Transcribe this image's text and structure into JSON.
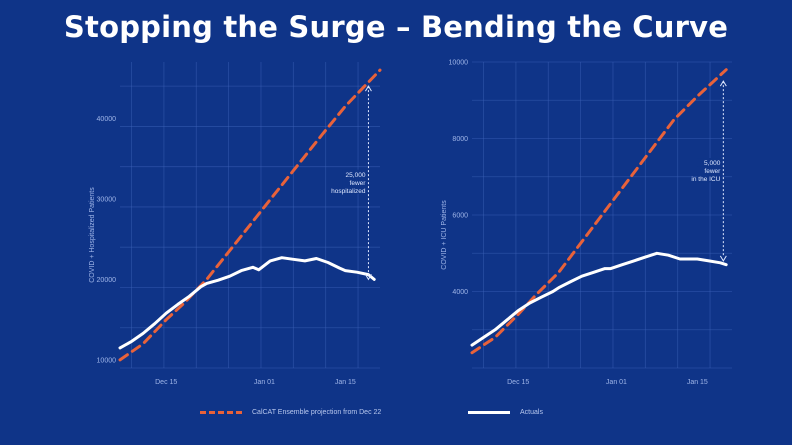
{
  "slide": {
    "title": "Stopping the Surge – Bending the Curve"
  },
  "legend": {
    "projection_label": "CalCAT Ensemble projection from Dec 22",
    "actuals_label": "Actuals"
  },
  "colors": {
    "background": "#0f3488",
    "projection": "#e8623a",
    "actuals": "#ffffff",
    "grid": "#3d62b8"
  },
  "chart_data": [
    {
      "type": "line",
      "ylabel": "COVID + Hospitalized Patients",
      "x_ticks": [
        {
          "label": "Dec 15",
          "day": 0
        },
        {
          "label": "Jan 01",
          "day": 17
        },
        {
          "label": "Jan 15",
          "day": 31
        }
      ],
      "xlim": [
        -8,
        37
      ],
      "ylim": [
        9000,
        47000
      ],
      "y_ticks": [
        10000,
        20000,
        30000,
        40000
      ],
      "grid": true,
      "series": [
        {
          "name": "CalCAT Ensemble projection from Dec 22",
          "style": "dashed",
          "x": [
            -8,
            -4,
            0,
            3,
            7,
            12,
            17,
            22,
            27,
            31,
            37
          ],
          "y": [
            10000,
            12000,
            15000,
            17000,
            20000,
            24500,
            29000,
            33500,
            38000,
            41500,
            46000
          ]
        },
        {
          "name": "Actuals",
          "style": "solid",
          "x": [
            -8,
            -6,
            -4,
            -2,
            0,
            2,
            4,
            6,
            7,
            9,
            11,
            13,
            15,
            16,
            18,
            20,
            22,
            24,
            26,
            28,
            30,
            31,
            33,
            35,
            36
          ],
          "y": [
            11500,
            12300,
            13300,
            14500,
            15800,
            16900,
            17900,
            19100,
            19500,
            19900,
            20400,
            21100,
            21500,
            21200,
            22300,
            22700,
            22500,
            22300,
            22600,
            22100,
            21400,
            21100,
            20900,
            20600,
            20000
          ]
        }
      ],
      "annotation": {
        "lines": [
          "25,000",
          "fewer",
          "hospitalized"
        ],
        "x": 35,
        "y_from": 44000,
        "y_to": 20000
      }
    },
    {
      "type": "line",
      "ylabel": "COVID + ICU Patients",
      "x_ticks": [
        {
          "label": "Dec 15",
          "day": 0
        },
        {
          "label": "Jan 01",
          "day": 17
        },
        {
          "label": "Jan 15",
          "day": 31
        }
      ],
      "xlim": [
        -8,
        37
      ],
      "ylim": [
        2000,
        10000
      ],
      "y_ticks": [
        4000,
        6000,
        8000,
        10000
      ],
      "grid": true,
      "series": [
        {
          "name": "CalCAT Ensemble projection from Dec 22",
          "style": "dashed",
          "x": [
            -8,
            -4,
            0,
            3,
            7,
            12,
            17,
            22,
            27,
            31,
            36
          ],
          "y": [
            2400,
            2800,
            3400,
            3900,
            4500,
            5500,
            6500,
            7500,
            8500,
            9100,
            9800
          ]
        },
        {
          "name": "Actuals",
          "style": "solid",
          "x": [
            -8,
            -6,
            -4,
            -2,
            0,
            2,
            4,
            6,
            7,
            9,
            11,
            13,
            15,
            16,
            18,
            20,
            22,
            24,
            26,
            28,
            30,
            31,
            33,
            35,
            36
          ],
          "y": [
            2600,
            2800,
            3000,
            3250,
            3500,
            3700,
            3850,
            4000,
            4100,
            4250,
            4400,
            4500,
            4600,
            4600,
            4700,
            4800,
            4900,
            5000,
            4950,
            4850,
            4850,
            4850,
            4800,
            4750,
            4700
          ]
        }
      ],
      "annotation": {
        "lines": [
          "5,000",
          "fewer",
          "in the ICU"
        ],
        "x": 35.5,
        "y_from": 9500,
        "y_to": 4800
      }
    }
  ]
}
